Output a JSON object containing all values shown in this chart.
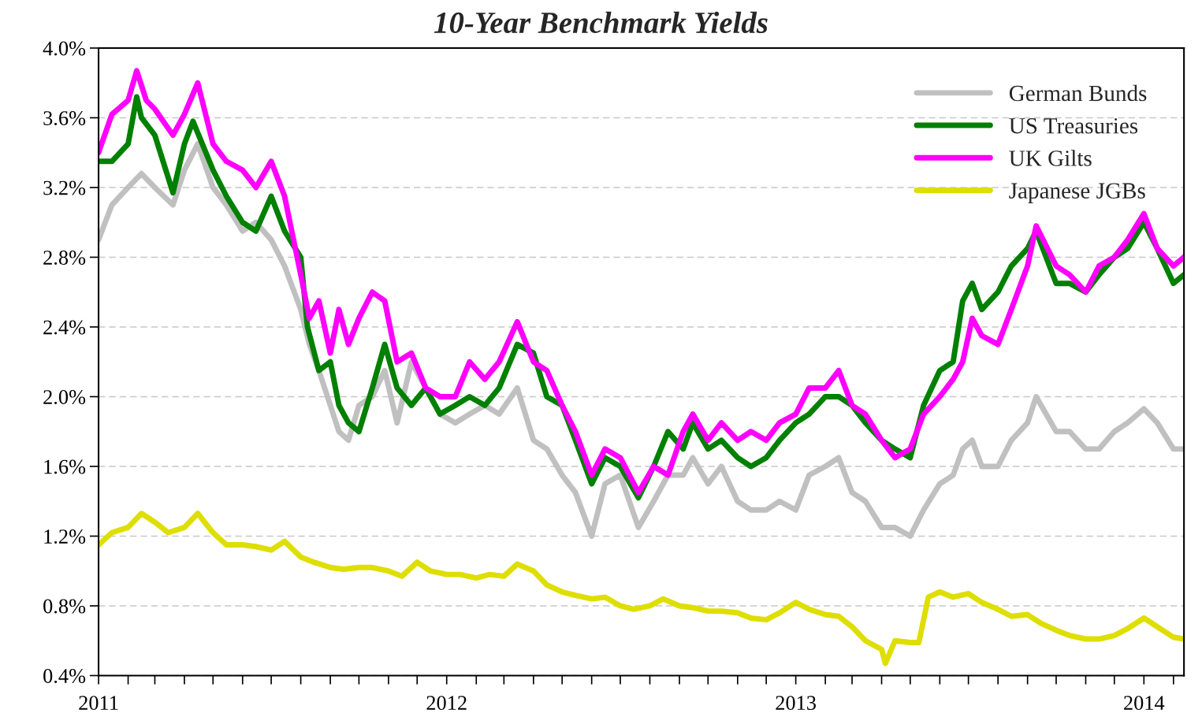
{
  "chart_data": {
    "type": "line",
    "title": "10-Year Benchmark Yields",
    "xlim": [
      "2011-01-01",
      "2014-02-12"
    ],
    "ylim": [
      0.4,
      4.0
    ],
    "yticks": [
      {
        "value": 0.4,
        "label": "0.4%"
      },
      {
        "value": 0.8,
        "label": "0.8%"
      },
      {
        "value": 1.2,
        "label": "1.2%"
      },
      {
        "value": 1.6,
        "label": "1.6%"
      },
      {
        "value": 2.0,
        "label": "2.0%"
      },
      {
        "value": 2.4,
        "label": "2.4%"
      },
      {
        "value": 2.8,
        "label": "2.8%"
      },
      {
        "value": 3.2,
        "label": "3.2%"
      },
      {
        "value": 3.6,
        "label": "3.6%"
      },
      {
        "value": 4.0,
        "label": "4.0%"
      }
    ],
    "xticks": [
      {
        "value": "2011-01-01",
        "label": "2011"
      },
      {
        "value": "2011-02-01",
        "label": null
      },
      {
        "value": "2011-03-01",
        "label": null
      },
      {
        "value": "2011-04-01",
        "label": null
      },
      {
        "value": "2011-05-01",
        "label": null
      },
      {
        "value": "2011-06-01",
        "label": null
      },
      {
        "value": "2011-07-01",
        "label": null
      },
      {
        "value": "2011-08-01",
        "label": null
      },
      {
        "value": "2011-09-01",
        "label": null
      },
      {
        "value": "2011-10-01",
        "label": null
      },
      {
        "value": "2011-11-01",
        "label": null
      },
      {
        "value": "2011-12-01",
        "label": null
      },
      {
        "value": "2012-01-01",
        "label": "2012"
      },
      {
        "value": "2012-02-01",
        "label": null
      },
      {
        "value": "2012-03-01",
        "label": null
      },
      {
        "value": "2012-04-01",
        "label": null
      },
      {
        "value": "2012-05-01",
        "label": null
      },
      {
        "value": "2012-06-01",
        "label": null
      },
      {
        "value": "2012-07-01",
        "label": null
      },
      {
        "value": "2012-08-01",
        "label": null
      },
      {
        "value": "2012-09-01",
        "label": null
      },
      {
        "value": "2012-10-01",
        "label": null
      },
      {
        "value": "2012-11-01",
        "label": null
      },
      {
        "value": "2012-12-01",
        "label": null
      },
      {
        "value": "2013-01-01",
        "label": "2013"
      },
      {
        "value": "2013-02-01",
        "label": null
      },
      {
        "value": "2013-03-01",
        "label": null
      },
      {
        "value": "2013-04-01",
        "label": null
      },
      {
        "value": "2013-05-01",
        "label": null
      },
      {
        "value": "2013-06-01",
        "label": null
      },
      {
        "value": "2013-07-01",
        "label": null
      },
      {
        "value": "2013-08-01",
        "label": null
      },
      {
        "value": "2013-09-01",
        "label": null
      },
      {
        "value": "2013-10-01",
        "label": null
      },
      {
        "value": "2013-11-01",
        "label": null
      },
      {
        "value": "2013-12-01",
        "label": null
      },
      {
        "value": "2014-01-01",
        "label": "2014"
      },
      {
        "value": "2014-02-01",
        "label": null
      }
    ],
    "grid": "y",
    "legend": "top right",
    "line_style": "solid",
    "marker": "none",
    "series": [
      {
        "name": "German Bunds",
        "color": "#c0c0c0",
        "x": [
          "2011-01-01",
          "2011-01-15",
          "2011-02-01",
          "2011-02-15",
          "2011-03-01",
          "2011-03-20",
          "2011-04-01",
          "2011-04-15",
          "2011-05-01",
          "2011-05-15",
          "2011-06-01",
          "2011-06-15",
          "2011-07-01",
          "2011-07-15",
          "2011-08-01",
          "2011-08-10",
          "2011-08-20",
          "2011-09-01",
          "2011-09-10",
          "2011-09-20",
          "2011-10-01",
          "2011-10-15",
          "2011-10-28",
          "2011-11-10",
          "2011-11-25",
          "2011-12-10",
          "2011-12-25",
          "2012-01-10",
          "2012-01-25",
          "2012-02-10",
          "2012-02-25",
          "2012-03-15",
          "2012-04-01",
          "2012-04-15",
          "2012-05-01",
          "2012-05-15",
          "2012-06-01",
          "2012-06-15",
          "2012-07-01",
          "2012-07-20",
          "2012-08-05",
          "2012-08-20",
          "2012-09-05",
          "2012-09-15",
          "2012-10-01",
          "2012-10-15",
          "2012-11-01",
          "2012-11-15",
          "2012-12-01",
          "2012-12-15",
          "2013-01-01",
          "2013-01-15",
          "2013-02-01",
          "2013-02-15",
          "2013-03-01",
          "2013-03-15",
          "2013-04-01",
          "2013-04-15",
          "2013-05-01",
          "2013-05-15",
          "2013-06-01",
          "2013-06-15",
          "2013-06-25",
          "2013-07-05",
          "2013-07-15",
          "2013-08-01",
          "2013-08-15",
          "2013-09-01",
          "2013-09-10",
          "2013-10-01",
          "2013-10-15",
          "2013-11-01",
          "2013-11-15",
          "2013-12-01",
          "2013-12-15",
          "2014-01-01",
          "2014-01-15",
          "2014-02-01",
          "2014-02-12"
        ],
        "values": [
          2.9,
          3.1,
          3.2,
          3.28,
          3.2,
          3.1,
          3.3,
          3.45,
          3.2,
          3.1,
          2.95,
          3.0,
          2.9,
          2.75,
          2.5,
          2.3,
          2.15,
          1.95,
          1.8,
          1.75,
          1.95,
          2.0,
          2.15,
          1.85,
          2.2,
          2.05,
          1.9,
          1.85,
          1.9,
          1.95,
          1.9,
          2.05,
          1.75,
          1.7,
          1.55,
          1.45,
          1.2,
          1.5,
          1.55,
          1.25,
          1.4,
          1.55,
          1.55,
          1.65,
          1.5,
          1.6,
          1.4,
          1.35,
          1.35,
          1.4,
          1.35,
          1.55,
          1.6,
          1.65,
          1.45,
          1.4,
          1.25,
          1.25,
          1.2,
          1.35,
          1.5,
          1.55,
          1.7,
          1.75,
          1.6,
          1.6,
          1.75,
          1.85,
          2.0,
          1.8,
          1.8,
          1.7,
          1.7,
          1.8,
          1.85,
          1.93,
          1.85,
          1.7,
          1.7
        ]
      },
      {
        "name": "US Treasuries",
        "color": "#008000",
        "x": [
          "2011-01-01",
          "2011-01-15",
          "2011-02-01",
          "2011-02-10",
          "2011-02-15",
          "2011-03-01",
          "2011-03-20",
          "2011-04-01",
          "2011-04-10",
          "2011-05-01",
          "2011-05-15",
          "2011-06-01",
          "2011-06-15",
          "2011-07-01",
          "2011-07-15",
          "2011-08-01",
          "2011-08-08",
          "2011-08-20",
          "2011-09-01",
          "2011-09-10",
          "2011-09-20",
          "2011-10-01",
          "2011-10-15",
          "2011-10-28",
          "2011-11-10",
          "2011-11-25",
          "2011-12-10",
          "2011-12-25",
          "2012-01-10",
          "2012-01-25",
          "2012-02-10",
          "2012-02-25",
          "2012-03-15",
          "2012-04-01",
          "2012-04-15",
          "2012-05-01",
          "2012-05-15",
          "2012-06-01",
          "2012-06-15",
          "2012-07-01",
          "2012-07-20",
          "2012-08-05",
          "2012-08-20",
          "2012-09-05",
          "2012-09-15",
          "2012-10-01",
          "2012-10-15",
          "2012-11-01",
          "2012-11-15",
          "2012-12-01",
          "2012-12-15",
          "2013-01-01",
          "2013-01-15",
          "2013-02-01",
          "2013-02-15",
          "2013-03-01",
          "2013-03-15",
          "2013-04-01",
          "2013-04-15",
          "2013-05-01",
          "2013-05-15",
          "2013-06-01",
          "2013-06-15",
          "2013-06-25",
          "2013-07-05",
          "2013-07-15",
          "2013-08-01",
          "2013-08-15",
          "2013-09-01",
          "2013-09-10",
          "2013-10-01",
          "2013-10-15",
          "2013-11-01",
          "2013-11-15",
          "2013-12-01",
          "2013-12-15",
          "2014-01-01",
          "2014-01-15",
          "2014-02-01",
          "2014-02-12"
        ],
        "values": [
          3.35,
          3.35,
          3.45,
          3.72,
          3.6,
          3.5,
          3.17,
          3.45,
          3.58,
          3.3,
          3.15,
          3.0,
          2.95,
          3.15,
          2.95,
          2.8,
          2.4,
          2.15,
          2.2,
          1.95,
          1.85,
          1.8,
          2.05,
          2.3,
          2.05,
          1.95,
          2.05,
          1.9,
          1.95,
          2.0,
          1.95,
          2.05,
          2.3,
          2.25,
          2.0,
          1.95,
          1.75,
          1.5,
          1.65,
          1.6,
          1.42,
          1.6,
          1.8,
          1.7,
          1.85,
          1.7,
          1.75,
          1.65,
          1.6,
          1.65,
          1.75,
          1.85,
          1.9,
          2.0,
          2.0,
          1.95,
          1.85,
          1.75,
          1.7,
          1.65,
          1.95,
          2.15,
          2.2,
          2.55,
          2.65,
          2.5,
          2.6,
          2.75,
          2.85,
          2.95,
          2.65,
          2.65,
          2.6,
          2.7,
          2.8,
          2.85,
          3.0,
          2.85,
          2.65,
          2.7
        ]
      },
      {
        "name": "UK Gilts",
        "color": "#ff00ff",
        "x": [
          "2011-01-01",
          "2011-01-15",
          "2011-02-01",
          "2011-02-10",
          "2011-02-20",
          "2011-03-01",
          "2011-03-20",
          "2011-04-01",
          "2011-04-15",
          "2011-05-01",
          "2011-05-15",
          "2011-06-01",
          "2011-06-15",
          "2011-07-01",
          "2011-07-15",
          "2011-08-01",
          "2011-08-10",
          "2011-08-20",
          "2011-09-01",
          "2011-09-10",
          "2011-09-20",
          "2011-10-01",
          "2011-10-15",
          "2011-10-28",
          "2011-11-10",
          "2011-11-25",
          "2011-12-10",
          "2011-12-25",
          "2012-01-10",
          "2012-01-25",
          "2012-02-10",
          "2012-02-25",
          "2012-03-15",
          "2012-04-01",
          "2012-04-15",
          "2012-05-01",
          "2012-05-15",
          "2012-06-01",
          "2012-06-15",
          "2012-07-01",
          "2012-07-20",
          "2012-08-05",
          "2012-08-20",
          "2012-09-05",
          "2012-09-15",
          "2012-10-01",
          "2012-10-15",
          "2012-11-01",
          "2012-11-15",
          "2012-12-01",
          "2012-12-15",
          "2013-01-01",
          "2013-01-15",
          "2013-02-01",
          "2013-02-15",
          "2013-03-01",
          "2013-03-15",
          "2013-04-01",
          "2013-04-15",
          "2013-05-01",
          "2013-05-15",
          "2013-06-01",
          "2013-06-15",
          "2013-06-25",
          "2013-07-05",
          "2013-07-15",
          "2013-08-01",
          "2013-08-15",
          "2013-09-01",
          "2013-09-10",
          "2013-10-01",
          "2013-10-15",
          "2013-11-01",
          "2013-11-15",
          "2013-12-01",
          "2013-12-15",
          "2014-01-01",
          "2014-01-15",
          "2014-02-01",
          "2014-02-12"
        ],
        "values": [
          3.4,
          3.62,
          3.7,
          3.87,
          3.7,
          3.65,
          3.5,
          3.62,
          3.8,
          3.45,
          3.35,
          3.3,
          3.2,
          3.35,
          3.15,
          2.7,
          2.45,
          2.55,
          2.25,
          2.5,
          2.3,
          2.45,
          2.6,
          2.55,
          2.2,
          2.25,
          2.05,
          2.0,
          2.0,
          2.2,
          2.1,
          2.2,
          2.43,
          2.2,
          2.15,
          1.95,
          1.8,
          1.55,
          1.7,
          1.65,
          1.45,
          1.6,
          1.55,
          1.8,
          1.9,
          1.75,
          1.85,
          1.75,
          1.8,
          1.75,
          1.85,
          1.9,
          2.05,
          2.05,
          2.15,
          1.95,
          1.9,
          1.75,
          1.65,
          1.7,
          1.9,
          2.0,
          2.1,
          2.2,
          2.45,
          2.35,
          2.3,
          2.5,
          2.75,
          2.98,
          2.75,
          2.7,
          2.6,
          2.75,
          2.8,
          2.9,
          3.05,
          2.85,
          2.75,
          2.8
        ]
      },
      {
        "name": "Japanese JGBs",
        "color": "#dede00",
        "x": [
          "2011-01-01",
          "2011-01-15",
          "2011-02-01",
          "2011-02-15",
          "2011-03-01",
          "2011-03-15",
          "2011-04-01",
          "2011-04-15",
          "2011-05-01",
          "2011-05-15",
          "2011-06-01",
          "2011-06-15",
          "2011-07-01",
          "2011-07-15",
          "2011-08-01",
          "2011-08-15",
          "2011-09-01",
          "2011-09-15",
          "2011-10-01",
          "2011-10-15",
          "2011-11-01",
          "2011-11-15",
          "2011-12-01",
          "2011-12-15",
          "2012-01-01",
          "2012-01-15",
          "2012-02-01",
          "2012-02-15",
          "2012-03-01",
          "2012-03-15",
          "2012-04-01",
          "2012-04-15",
          "2012-05-01",
          "2012-05-15",
          "2012-06-01",
          "2012-06-15",
          "2012-07-01",
          "2012-07-15",
          "2012-08-01",
          "2012-08-15",
          "2012-09-01",
          "2012-09-15",
          "2012-10-01",
          "2012-10-15",
          "2012-11-01",
          "2012-11-15",
          "2012-12-01",
          "2012-12-15",
          "2013-01-01",
          "2013-01-15",
          "2013-02-01",
          "2013-02-15",
          "2013-03-01",
          "2013-03-15",
          "2013-04-01",
          "2013-04-05",
          "2013-04-15",
          "2013-05-01",
          "2013-05-10",
          "2013-05-20",
          "2013-06-01",
          "2013-06-15",
          "2013-07-01",
          "2013-07-15",
          "2013-08-01",
          "2013-08-15",
          "2013-09-01",
          "2013-09-15",
          "2013-10-01",
          "2013-10-15",
          "2013-11-01",
          "2013-11-15",
          "2013-12-01",
          "2013-12-15",
          "2014-01-01",
          "2014-01-15",
          "2014-02-01",
          "2014-02-12"
        ],
        "values": [
          1.15,
          1.22,
          1.25,
          1.33,
          1.28,
          1.22,
          1.25,
          1.33,
          1.22,
          1.15,
          1.15,
          1.14,
          1.12,
          1.17,
          1.08,
          1.05,
          1.02,
          1.01,
          1.02,
          1.02,
          1.0,
          0.97,
          1.05,
          1.0,
          0.98,
          0.98,
          0.96,
          0.98,
          0.97,
          1.04,
          1.0,
          0.92,
          0.88,
          0.86,
          0.84,
          0.85,
          0.8,
          0.78,
          0.8,
          0.84,
          0.8,
          0.79,
          0.77,
          0.77,
          0.76,
          0.73,
          0.72,
          0.76,
          0.82,
          0.78,
          0.75,
          0.74,
          0.68,
          0.6,
          0.55,
          0.47,
          0.6,
          0.59,
          0.59,
          0.85,
          0.88,
          0.85,
          0.87,
          0.82,
          0.78,
          0.74,
          0.75,
          0.7,
          0.66,
          0.63,
          0.61,
          0.61,
          0.63,
          0.67,
          0.73,
          0.68,
          0.62,
          0.61
        ]
      }
    ]
  }
}
